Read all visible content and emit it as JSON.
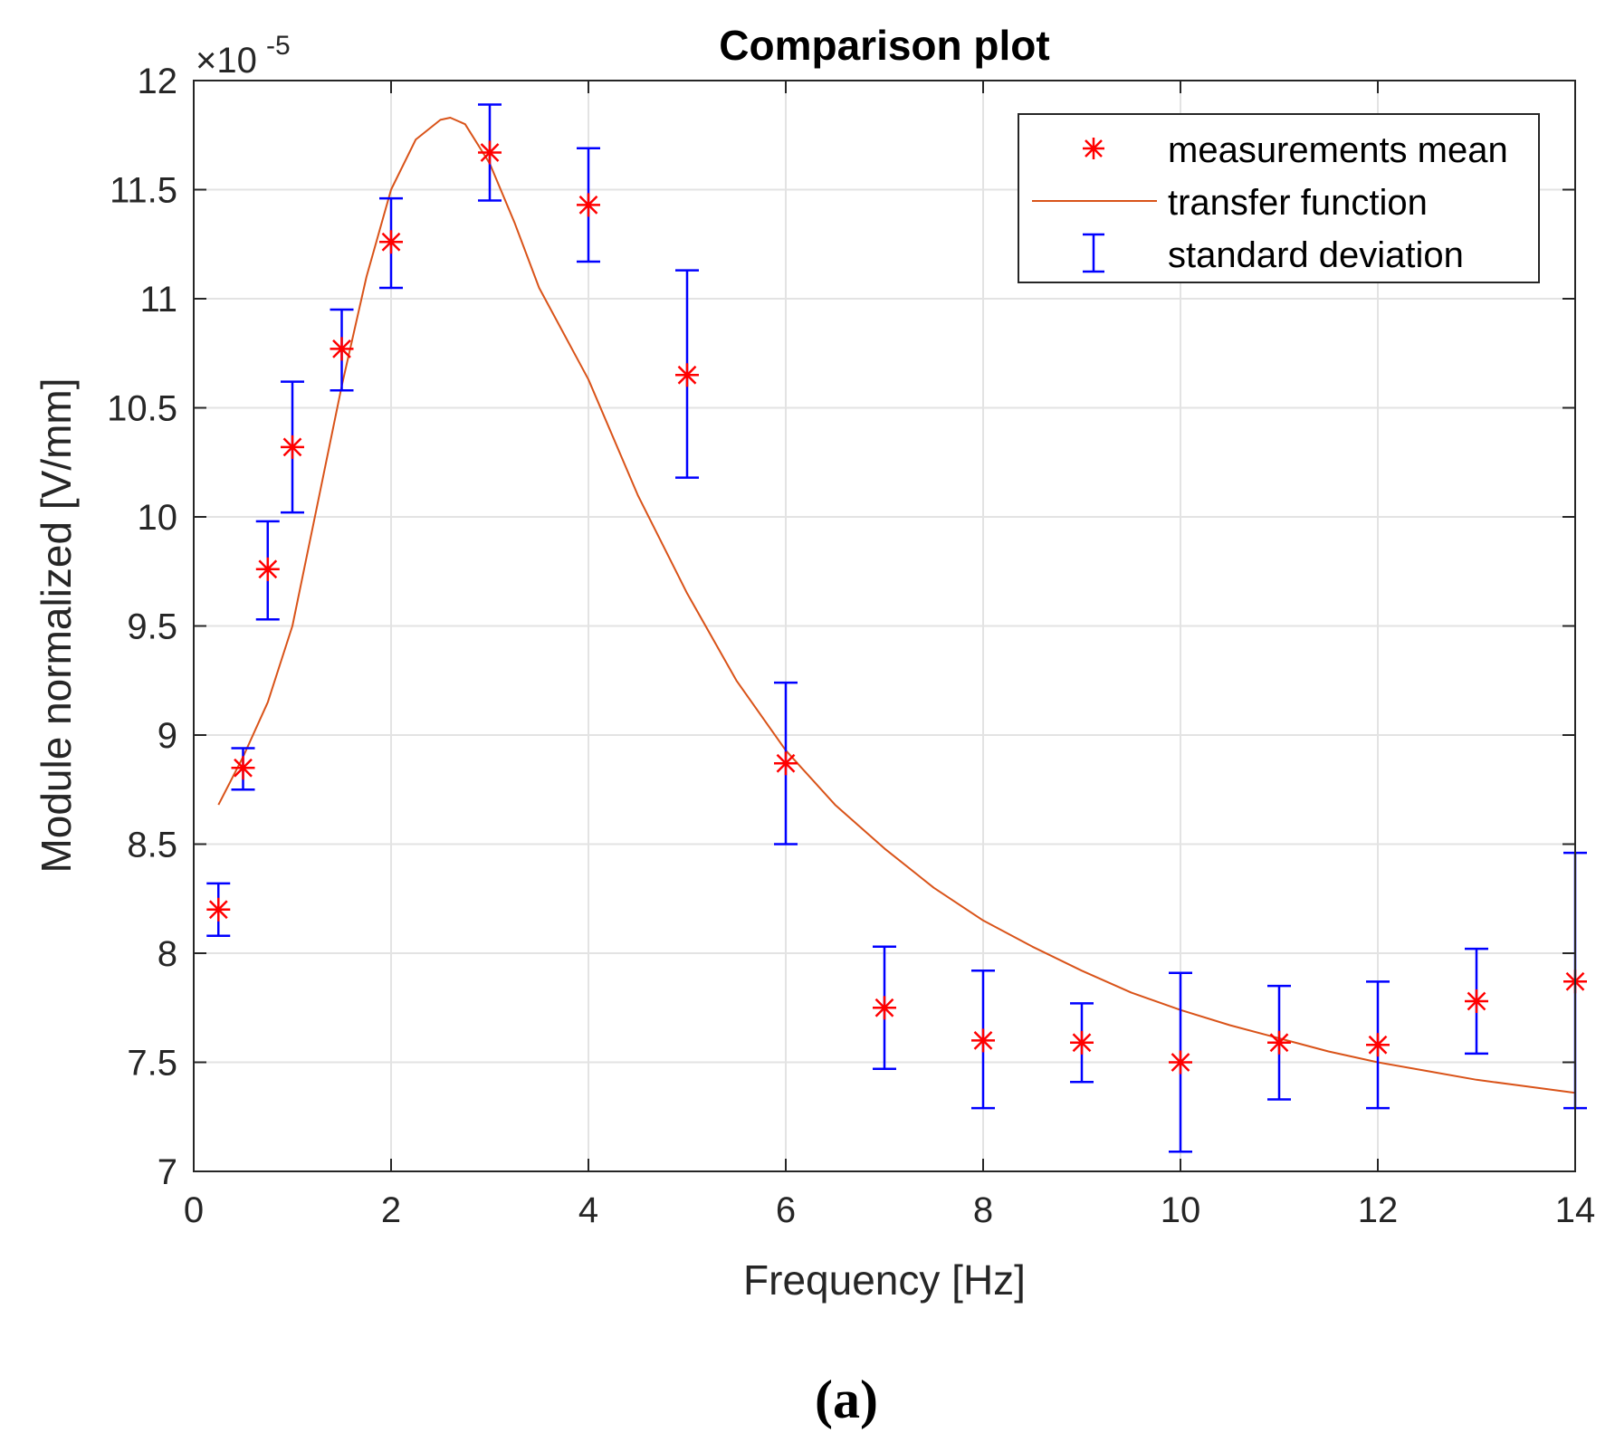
{
  "chart_data": {
    "type": "scatter",
    "title": "Comparison plot",
    "xlabel": "Frequency [Hz]",
    "ylabel": "Module normalized [V/mm]",
    "y_exponent": {
      "times": "×10",
      "power": "-5"
    },
    "xlim": [
      0,
      14
    ],
    "ylim": [
      7,
      12
    ],
    "xticks": [
      0,
      2,
      4,
      6,
      8,
      10,
      12,
      14
    ],
    "xtick_labels": [
      "0",
      "2",
      "4",
      "6",
      "8",
      "10",
      "12",
      "14"
    ],
    "yticks": [
      7,
      7.5,
      8,
      8.5,
      9,
      9.5,
      10,
      10.5,
      11,
      11.5,
      12
    ],
    "ytick_labels": [
      "7",
      "7.5",
      "8",
      "8.5",
      "9",
      "9.5",
      "10",
      "10.5",
      "11",
      "11.5",
      "12"
    ],
    "grid": true,
    "legend_position": "top-right",
    "series": [
      {
        "name": "measurements mean",
        "kind": "markers",
        "marker": "asterisk",
        "color": "#ff0000",
        "x": [
          0.25,
          0.5,
          0.75,
          1,
          1.5,
          2,
          3,
          4,
          5,
          6,
          7,
          8,
          9,
          10,
          11,
          12,
          13,
          14
        ],
        "y": [
          8.2,
          8.85,
          9.76,
          10.32,
          10.77,
          11.26,
          11.67,
          11.43,
          10.65,
          8.87,
          7.75,
          7.6,
          7.59,
          7.5,
          7.59,
          7.58,
          7.78,
          7.87
        ]
      },
      {
        "name": "transfer function",
        "kind": "line",
        "color": "#d95319",
        "x": [
          0.25,
          0.5,
          0.75,
          1,
          1.25,
          1.5,
          1.75,
          2,
          2.25,
          2.5,
          2.6,
          2.75,
          3,
          3.25,
          3.5,
          4,
          4.5,
          5,
          5.5,
          6,
          6.5,
          7,
          7.5,
          8,
          8.5,
          9,
          9.5,
          10,
          10.5,
          11,
          11.5,
          12,
          12.5,
          13,
          13.5,
          14
        ],
        "y": [
          8.68,
          8.9,
          9.15,
          9.5,
          10.05,
          10.6,
          11.1,
          11.5,
          11.73,
          11.82,
          11.83,
          11.8,
          11.62,
          11.35,
          11.05,
          10.63,
          10.1,
          9.65,
          9.25,
          8.93,
          8.68,
          8.48,
          8.3,
          8.15,
          8.03,
          7.92,
          7.82,
          7.74,
          7.67,
          7.61,
          7.55,
          7.5,
          7.46,
          7.42,
          7.39,
          7.36
        ]
      },
      {
        "name": "standard deviation",
        "kind": "errorbar",
        "color": "#0000ff",
        "x": [
          0.25,
          0.5,
          0.75,
          1,
          1.5,
          2,
          3,
          4,
          5,
          6,
          7,
          8,
          9,
          10,
          11,
          12,
          13,
          14
        ],
        "low": [
          8.08,
          8.75,
          9.53,
          10.02,
          10.58,
          11.05,
          11.45,
          11.17,
          10.18,
          8.5,
          7.47,
          7.29,
          7.41,
          7.09,
          7.33,
          7.29,
          7.54,
          7.29
        ],
        "high": [
          8.32,
          8.94,
          9.98,
          10.62,
          10.95,
          11.46,
          11.89,
          11.69,
          11.13,
          9.24,
          8.03,
          7.92,
          7.77,
          7.91,
          7.85,
          7.87,
          8.02,
          8.46
        ]
      }
    ]
  },
  "caption": "(a)"
}
